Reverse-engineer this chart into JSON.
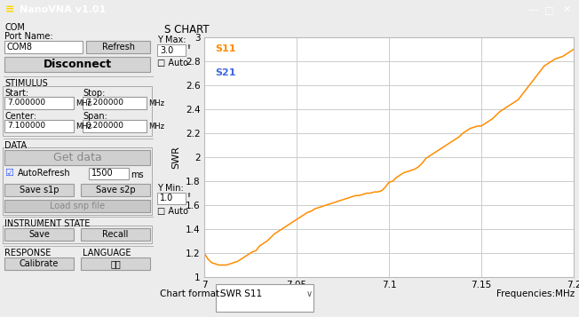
{
  "title": "S CHART",
  "xlabel": "Frequencies:MHz",
  "ylabel": "SWR",
  "x_start": 7.0,
  "x_end": 7.2,
  "y_min": 1.0,
  "y_max": 3.0,
  "x_ticks": [
    7.0,
    7.05,
    7.1,
    7.15,
    7.2
  ],
  "y_ticks": [
    1.0,
    1.2,
    1.4,
    1.6,
    1.8,
    2.0,
    2.2,
    2.4,
    2.6,
    2.8,
    3.0
  ],
  "line_color": "#FF8C00",
  "line_color_s21": "#4169E1",
  "legend_s11": "S11",
  "legend_s21": "S21",
  "bg_color": "#ECECEC",
  "plot_bg_color": "#FFFFFF",
  "grid_color": "#CCCCCC",
  "title_bar_color": "#1F6E7E",
  "app_title": "NanoVNA v1.01",
  "panel_bg": "#E0E0E0",
  "swr_data_x": [
    7.0,
    7.002,
    7.004,
    7.006,
    7.008,
    7.01,
    7.012,
    7.014,
    7.016,
    7.018,
    7.02,
    7.022,
    7.024,
    7.026,
    7.028,
    7.03,
    7.032,
    7.034,
    7.036,
    7.038,
    7.04,
    7.042,
    7.044,
    7.046,
    7.048,
    7.05,
    7.052,
    7.054,
    7.056,
    7.058,
    7.06,
    7.062,
    7.064,
    7.066,
    7.068,
    7.07,
    7.072,
    7.074,
    7.076,
    7.078,
    7.08,
    7.082,
    7.084,
    7.086,
    7.088,
    7.09,
    7.092,
    7.094,
    7.096,
    7.098,
    7.1,
    7.102,
    7.104,
    7.106,
    7.108,
    7.11,
    7.112,
    7.114,
    7.116,
    7.118,
    7.12,
    7.122,
    7.124,
    7.126,
    7.128,
    7.13,
    7.132,
    7.134,
    7.136,
    7.138,
    7.14,
    7.142,
    7.144,
    7.146,
    7.148,
    7.15,
    7.152,
    7.154,
    7.156,
    7.158,
    7.16,
    7.162,
    7.164,
    7.166,
    7.168,
    7.17,
    7.172,
    7.174,
    7.176,
    7.178,
    7.18,
    7.182,
    7.184,
    7.186,
    7.188,
    7.19,
    7.192,
    7.194,
    7.196,
    7.198,
    7.2
  ],
  "swr_data_y": [
    1.2,
    1.15,
    1.12,
    1.11,
    1.1,
    1.1,
    1.1,
    1.11,
    1.12,
    1.13,
    1.15,
    1.17,
    1.19,
    1.21,
    1.22,
    1.26,
    1.28,
    1.3,
    1.33,
    1.36,
    1.38,
    1.4,
    1.42,
    1.44,
    1.46,
    1.48,
    1.5,
    1.52,
    1.54,
    1.55,
    1.57,
    1.58,
    1.59,
    1.6,
    1.61,
    1.62,
    1.63,
    1.64,
    1.65,
    1.66,
    1.67,
    1.68,
    1.68,
    1.69,
    1.7,
    1.7,
    1.71,
    1.71,
    1.72,
    1.75,
    1.79,
    1.8,
    1.83,
    1.85,
    1.87,
    1.88,
    1.89,
    1.9,
    1.92,
    1.95,
    1.99,
    2.01,
    2.03,
    2.05,
    2.07,
    2.09,
    2.11,
    2.13,
    2.15,
    2.17,
    2.2,
    2.22,
    2.24,
    2.25,
    2.26,
    2.26,
    2.28,
    2.3,
    2.32,
    2.35,
    2.38,
    2.4,
    2.42,
    2.44,
    2.46,
    2.48,
    2.52,
    2.56,
    2.6,
    2.64,
    2.68,
    2.72,
    2.76,
    2.78,
    2.8,
    2.82,
    2.83,
    2.84,
    2.86,
    2.88,
    2.9
  ]
}
